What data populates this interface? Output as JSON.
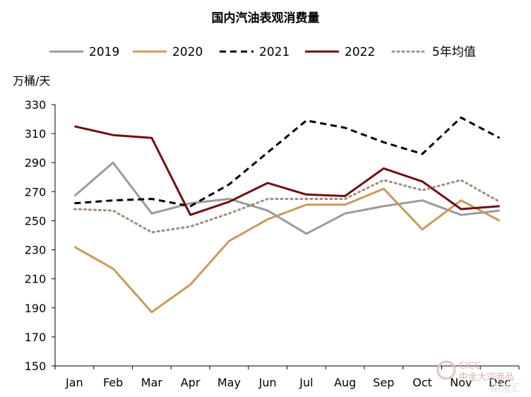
{
  "chart_data": {
    "type": "line",
    "title": "国内汽油表观消费量",
    "ylabel": "万桶/天",
    "xlabel": "",
    "categories": [
      "Jan",
      "Feb",
      "Mar",
      "Apr",
      "May",
      "Jun",
      "Jul",
      "Aug",
      "Sep",
      "Oct",
      "Nov",
      "Dec"
    ],
    "ylim": [
      150,
      330
    ],
    "yticks": [
      150,
      170,
      190,
      210,
      230,
      250,
      270,
      290,
      310,
      330
    ],
    "legend_position": "top",
    "grid": false,
    "series": [
      {
        "name": "2019",
        "color": "#9b9b9b",
        "style": "solid",
        "values": [
          267,
          290,
          255,
          262,
          265,
          257,
          241,
          255,
          260,
          264,
          254,
          257
        ]
      },
      {
        "name": "2020",
        "color": "#c89b5c",
        "style": "solid",
        "values": [
          232,
          217,
          187,
          206,
          236,
          251,
          261,
          261,
          272,
          244,
          264,
          250
        ]
      },
      {
        "name": "2021",
        "color": "#000000",
        "style": "dashed",
        "values": [
          262,
          264,
          265,
          260,
          275,
          297,
          319,
          314,
          304,
          296,
          321,
          307
        ]
      },
      {
        "name": "2022",
        "color": "#6e0f12",
        "style": "solid",
        "values": [
          315,
          309,
          307,
          254,
          263,
          276,
          268,
          267,
          286,
          277,
          258,
          260
        ]
      },
      {
        "name": "5年均值",
        "color": "#a08a78",
        "style": "dotted",
        "values": [
          258,
          257,
          242,
          246,
          255,
          265,
          265,
          265,
          278,
          271,
          278,
          263
        ]
      }
    ]
  },
  "watermark": {
    "brand_latin": "CICC",
    "brand_cn": "中金大宗商品",
    "site": "格隆汇"
  }
}
